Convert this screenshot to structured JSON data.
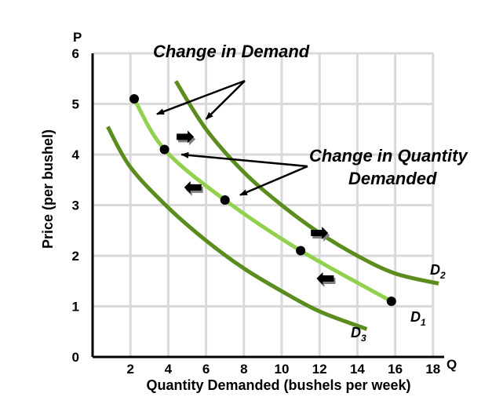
{
  "chart_data": {
    "type": "line",
    "title": "",
    "xlabel": "Quantity Demanded (bushels per week)",
    "ylabel": "Price (per bushel)",
    "x_axis_symbol": "Q",
    "y_axis_symbol": "P",
    "xlim": [
      0,
      19
    ],
    "ylim": [
      0,
      6
    ],
    "xticks": [
      2,
      4,
      6,
      8,
      10,
      12,
      14,
      16,
      18
    ],
    "yticks": [
      0,
      1,
      2,
      3,
      4,
      5,
      6
    ],
    "grid": true,
    "series": [
      {
        "name": "D",
        "subscript": "2",
        "color": "#5a8c1e",
        "x": [
          4.4,
          6,
          8,
          10,
          12,
          14,
          16,
          18.3
        ],
        "y": [
          5.45,
          4.5,
          3.65,
          3.0,
          2.45,
          2.0,
          1.65,
          1.45
        ]
      },
      {
        "name": "D",
        "subscript": "1",
        "color": "#92d050",
        "x": [
          2.2,
          3.8,
          7,
          11,
          15.8
        ],
        "y": [
          5.1,
          4.1,
          3.1,
          2.1,
          1.1
        ]
      },
      {
        "name": "D",
        "subscript": "3",
        "color": "#5a8c1e",
        "x": [
          0.8,
          2,
          4,
          6,
          8,
          10,
          12,
          14.5
        ],
        "y": [
          4.55,
          3.75,
          2.95,
          2.3,
          1.75,
          1.3,
          0.9,
          0.55
        ]
      }
    ],
    "points": [
      {
        "x": 2.2,
        "y": 5.1
      },
      {
        "x": 3.8,
        "y": 4.1
      },
      {
        "x": 7,
        "y": 3.1
      },
      {
        "x": 11,
        "y": 2.1
      },
      {
        "x": 15.8,
        "y": 1.1
      }
    ],
    "annotations": [
      {
        "text": "Change in Demand"
      },
      {
        "text": "Change in Quantity"
      },
      {
        "text": "Demanded"
      }
    ],
    "shift_arrows": [
      {
        "direction": "right",
        "x": 4.9,
        "y": 4.35
      },
      {
        "direction": "left",
        "x": 5.3,
        "y": 3.35
      },
      {
        "direction": "right",
        "x": 12.0,
        "y": 2.45
      },
      {
        "direction": "left",
        "x": 12.3,
        "y": 1.55
      }
    ]
  }
}
